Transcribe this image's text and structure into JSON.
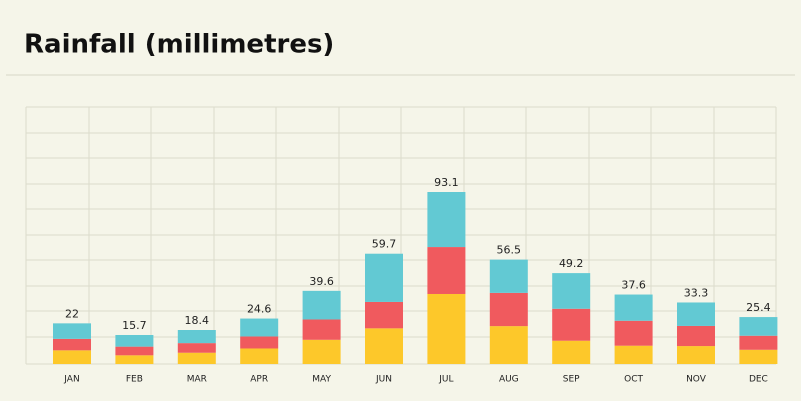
{
  "chart_data": {
    "type": "stacked-bar",
    "title": "Rainfall (millimetres)",
    "categories": [
      "JAN",
      "FEB",
      "MAR",
      "APR",
      "MAY",
      "JUN",
      "JUL",
      "AUG",
      "SEP",
      "OCT",
      "NOV",
      "DEC"
    ],
    "totals": [
      22,
      15.7,
      18.4,
      24.6,
      39.6,
      59.7,
      93.1,
      56.5,
      49.2,
      37.6,
      33.3,
      25.4
    ],
    "series": [
      {
        "color": "#fdc82a",
        "values": [
          7.4,
          4.7,
          6.1,
          8.4,
          13.1,
          19.3,
          37.9,
          20.5,
          12.6,
          9.9,
          9.7,
          7.7
        ]
      },
      {
        "color": "#f05a5e",
        "values": [
          6.2,
          4.7,
          5.2,
          6.5,
          11.0,
          14.3,
          25.4,
          18.0,
          17.3,
          13.5,
          10.9,
          7.6
        ]
      },
      {
        "color": "#62c9d3",
        "values": [
          8.4,
          6.3,
          7.1,
          9.7,
          15.5,
          26.1,
          29.8,
          18.0,
          19.3,
          14.2,
          12.7,
          10.1
        ]
      }
    ]
  }
}
